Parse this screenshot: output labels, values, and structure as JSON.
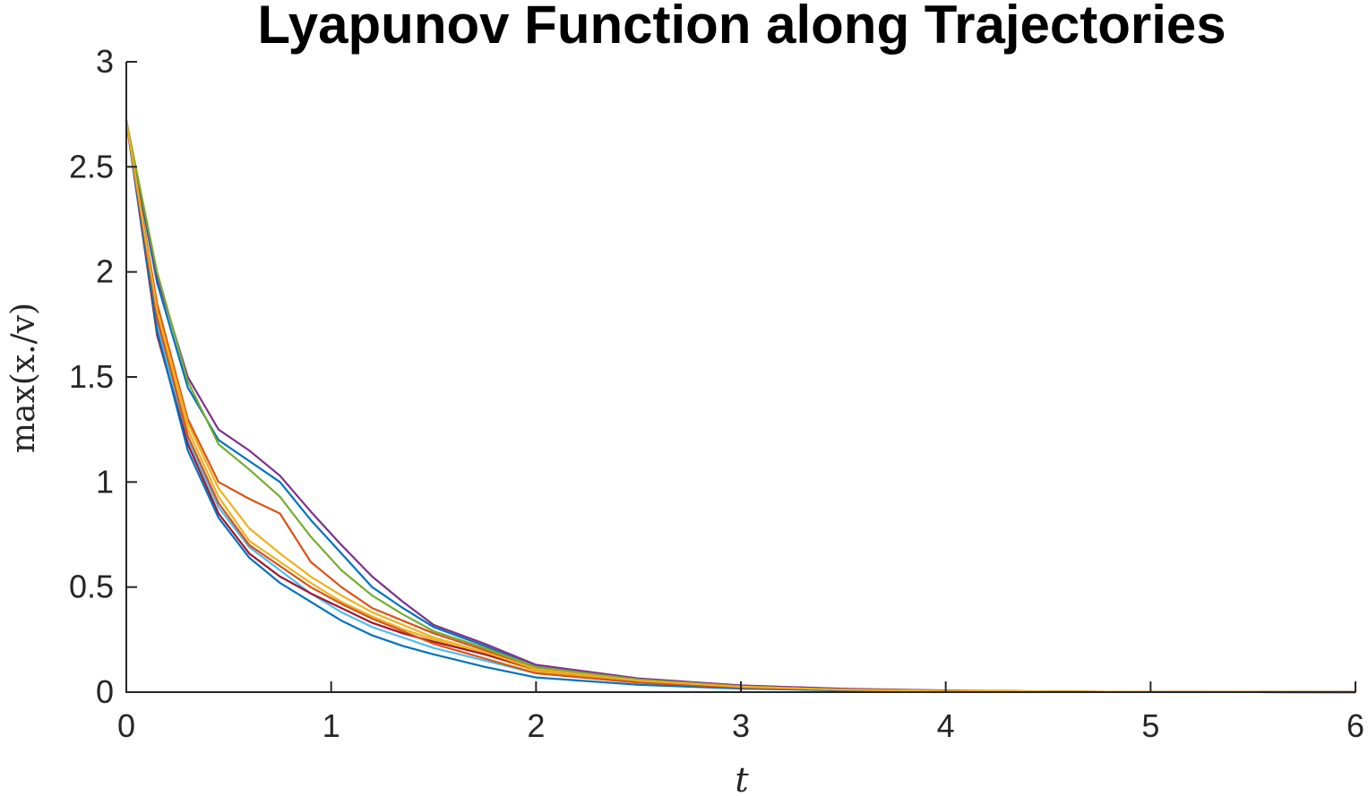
{
  "chart_data": {
    "type": "line",
    "title": "Lyapunov Function along Trajectories",
    "xlabel": "t",
    "ylabel": "max(x./v)",
    "xlim": [
      0,
      6
    ],
    "ylim": [
      0,
      3
    ],
    "xticks": [
      0,
      1,
      2,
      3,
      4,
      5,
      6
    ],
    "yticks": [
      0,
      0.5,
      1,
      1.5,
      2,
      2.5,
      3
    ],
    "xtick_labels": [
      "0",
      "1",
      "2",
      "3",
      "4",
      "5",
      "6"
    ],
    "ytick_labels": [
      "0",
      "0.5",
      "1",
      "1.5",
      "2",
      "2.5",
      "3"
    ],
    "grid": false,
    "legend": "none",
    "colors": [
      "#0072BD",
      "#D95319",
      "#EDB120",
      "#7E2F8E",
      "#77AC30",
      "#4DBEEE",
      "#A2142F"
    ],
    "x": [
      0,
      0.15,
      0.3,
      0.45,
      0.6,
      0.75,
      0.9,
      1.05,
      1.2,
      1.35,
      1.5,
      1.75,
      2.0,
      2.5,
      3.0,
      3.5,
      4.0,
      4.5,
      5.0,
      6.0
    ],
    "series": [
      {
        "values": [
          2.72,
          1.95,
          1.45,
          1.2,
          1.1,
          1.0,
          0.82,
          0.66,
          0.5,
          0.4,
          0.31,
          0.22,
          0.12,
          0.06,
          0.03,
          0.015,
          0.007,
          0.003,
          0.001,
          0.0
        ]
      },
      {
        "values": [
          2.72,
          1.85,
          1.3,
          1.0,
          0.92,
          0.85,
          0.62,
          0.5,
          0.4,
          0.34,
          0.28,
          0.2,
          0.11,
          0.05,
          0.025,
          0.012,
          0.006,
          0.003,
          0.001,
          0.0
        ]
      },
      {
        "values": [
          2.72,
          1.8,
          1.25,
          0.93,
          0.72,
          0.62,
          0.52,
          0.43,
          0.36,
          0.3,
          0.25,
          0.18,
          0.1,
          0.05,
          0.023,
          0.011,
          0.005,
          0.002,
          0.001,
          0.0
        ]
      },
      {
        "values": [
          2.72,
          1.98,
          1.5,
          1.25,
          1.15,
          1.03,
          0.86,
          0.7,
          0.55,
          0.43,
          0.32,
          0.23,
          0.13,
          0.065,
          0.032,
          0.016,
          0.008,
          0.003,
          0.001,
          0.0
        ]
      },
      {
        "values": [
          2.72,
          2.0,
          1.48,
          1.18,
          1.06,
          0.93,
          0.74,
          0.58,
          0.46,
          0.37,
          0.29,
          0.21,
          0.12,
          0.06,
          0.028,
          0.013,
          0.006,
          0.003,
          0.001,
          0.0
        ]
      },
      {
        "values": [
          2.72,
          1.75,
          1.2,
          0.88,
          0.69,
          0.58,
          0.47,
          0.38,
          0.31,
          0.26,
          0.21,
          0.15,
          0.09,
          0.045,
          0.021,
          0.01,
          0.005,
          0.002,
          0.001,
          0.0
        ]
      },
      {
        "values": [
          2.72,
          1.7,
          1.18,
          0.85,
          0.66,
          0.55,
          0.47,
          0.4,
          0.33,
          0.28,
          0.24,
          0.18,
          0.11,
          0.055,
          0.027,
          0.013,
          0.006,
          0.003,
          0.001,
          0.0
        ]
      },
      {
        "values": [
          2.72,
          1.72,
          1.15,
          0.83,
          0.64,
          0.52,
          0.43,
          0.34,
          0.27,
          0.22,
          0.18,
          0.12,
          0.07,
          0.035,
          0.017,
          0.008,
          0.004,
          0.002,
          0.0005,
          0.0
        ]
      },
      {
        "values": [
          2.72,
          1.78,
          1.22,
          0.9,
          0.7,
          0.6,
          0.5,
          0.42,
          0.35,
          0.29,
          0.23,
          0.16,
          0.09,
          0.045,
          0.022,
          0.011,
          0.005,
          0.002,
          0.001,
          0.0
        ]
      },
      {
        "values": [
          2.72,
          1.82,
          1.28,
          0.97,
          0.78,
          0.66,
          0.55,
          0.46,
          0.38,
          0.32,
          0.26,
          0.19,
          0.11,
          0.055,
          0.026,
          0.012,
          0.006,
          0.003,
          0.001,
          0.0
        ]
      }
    ]
  }
}
